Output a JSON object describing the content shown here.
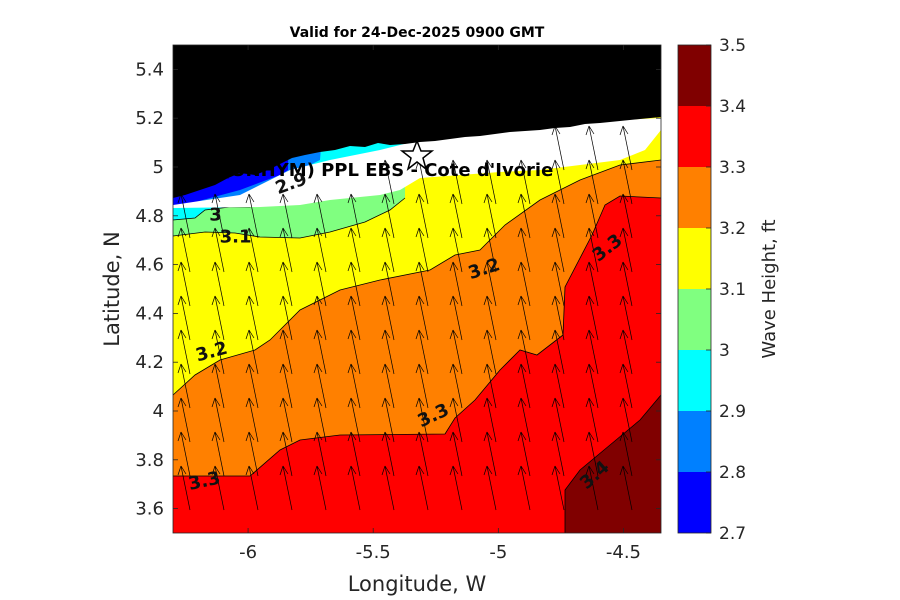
{
  "chart_data": {
    "type": "filled-contour",
    "title": "Valid for 24-Dec-2025 0900 GMT",
    "xlabel": "Longitude, W",
    "ylabel": "Latitude, N",
    "xlim": [
      -6.3,
      -4.35
    ],
    "ylim": [
      3.5,
      5.5
    ],
    "xticks": [
      "-6",
      "-5.5",
      "-5",
      "-4.5"
    ],
    "xtick_values": [
      -6,
      -5.5,
      -5,
      -4.5
    ],
    "yticks": [
      "3.6",
      "3.8",
      "4",
      "4.2",
      "4.4",
      "4.6",
      "4.8",
      "5",
      "5.2",
      "5.4"
    ],
    "ytick_values": [
      3.6,
      3.8,
      4.0,
      4.2,
      4.4,
      4.6,
      4.8,
      5.0,
      5.2,
      5.4
    ],
    "colorbar": {
      "label": "Wave Height, ft",
      "ticks": [
        "2.7",
        "2.8",
        "2.9",
        "3",
        "3.1",
        "3.2",
        "3.3",
        "3.4",
        "3.5"
      ],
      "tick_values": [
        2.7,
        2.8,
        2.9,
        3.0,
        3.1,
        3.2,
        3.3,
        3.4,
        3.5
      ],
      "colors": [
        "#0000ff",
        "#0080ff",
        "#00ffff",
        "#80ff80",
        "#ffff00",
        "#ff8000",
        "#ff0000",
        "#800000"
      ]
    },
    "land_color": "#000000",
    "station": {
      "label": "(ONHYM) PPL EBS  - Cote d'Ivorie",
      "lon": -5.35,
      "lat": 5.05
    },
    "contour_labels": [
      {
        "text": "2.9",
        "lon": -5.82,
        "lat": 4.91,
        "angle": -20
      },
      {
        "text": "3",
        "lon": -6.13,
        "lat": 4.78,
        "angle": 0
      },
      {
        "text": "3.1",
        "lon": -6.05,
        "lat": 4.69,
        "angle": 0
      },
      {
        "text": "3.2",
        "lon": -5.05,
        "lat": 4.56,
        "angle": -18
      },
      {
        "text": "3.2",
        "lon": -6.14,
        "lat": 4.22,
        "angle": -15
      },
      {
        "text": "3.3",
        "lon": -4.55,
        "lat": 4.65,
        "angle": -38
      },
      {
        "text": "3.3",
        "lon": -5.25,
        "lat": 3.96,
        "angle": -25
      },
      {
        "text": "3.3",
        "lon": -6.17,
        "lat": 3.69,
        "angle": -12
      },
      {
        "text": "3.4",
        "lon": -4.6,
        "lat": 3.72,
        "angle": -42
      }
    ],
    "wave_direction": "arrows pointing north-northwest (toward the coast)"
  }
}
